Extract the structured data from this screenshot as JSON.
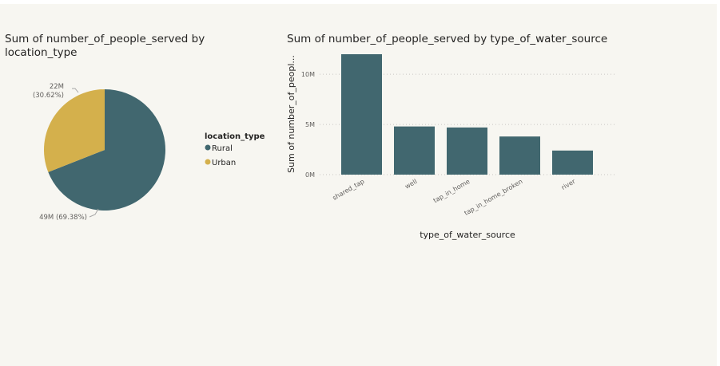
{
  "colors": {
    "rural": "#41676f",
    "urban": "#d4b04c",
    "bar": "#41676f"
  },
  "chart_data": [
    {
      "type": "pie",
      "title": "Sum of number_of_people_served by location_type",
      "legend_title": "location_type",
      "legend_position": "right",
      "slices": [
        {
          "label": "Rural",
          "value": 49,
          "display": "49M (69.38%)"
        },
        {
          "label": "Urban",
          "value": 22,
          "display": "22M (30.62%)"
        }
      ],
      "label_lines": {
        "urban": [
          "22M",
          "(30.62%)"
        ],
        "rural": [
          "49M (69.38%)"
        ]
      }
    },
    {
      "type": "bar",
      "title": "Sum of number_of_people_served by type_of_water_source",
      "xlabel": "type_of_water_source",
      "ylabel": "Sum of number_of_peopl...",
      "categories": [
        "shared_tap",
        "well",
        "tap_in_home",
        "tap_in_home_broken",
        "river"
      ],
      "values": [
        12,
        4.8,
        4.7,
        3.8,
        2.4
      ],
      "yticks": [
        0,
        5,
        10
      ],
      "ytick_labels": [
        "0M",
        "5M",
        "10M"
      ],
      "ylim": [
        0,
        12
      ],
      "grid": true
    }
  ]
}
